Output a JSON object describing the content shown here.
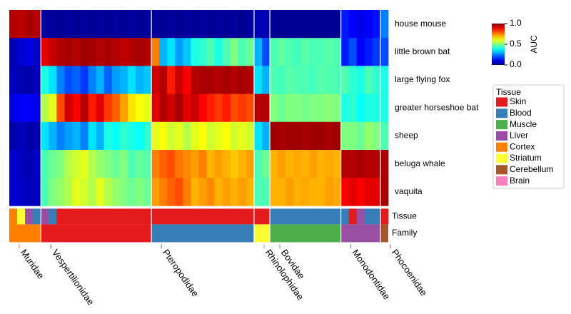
{
  "chart_data": {
    "type": "heatmap",
    "rows": [
      "house mouse",
      "little brown bat",
      "large flying fox",
      "greater horseshoe bat",
      "sheep",
      "beluga whale",
      "vaquita"
    ],
    "annotation_rows": [
      "Tissue",
      "Family"
    ],
    "zlim": [
      0,
      1
    ],
    "colormap": "jet",
    "colorbar": {
      "label": "AUC",
      "ticks": [
        {
          "value": 1,
          "label": "1.0"
        },
        {
          "value": 0.5,
          "label": "0.5"
        },
        {
          "value": 0,
          "label": "0.0"
        }
      ]
    },
    "legend_title": "Tissue",
    "tissues": [
      {
        "name": "Skin",
        "color": "#e41a1c"
      },
      {
        "name": "Blood",
        "color": "#377eb8"
      },
      {
        "name": "Muscle",
        "color": "#4daf4a"
      },
      {
        "name": "Liver",
        "color": "#984ea3"
      },
      {
        "name": "Cortex",
        "color": "#ff7f00"
      },
      {
        "name": "Striatum",
        "color": "#ffff33",
        "label_color": "#000000"
      },
      {
        "name": "Cerebellum",
        "color": "#a65628"
      },
      {
        "name": "Brain",
        "color": "#f781bf"
      }
    ],
    "families": [
      {
        "name": "Muridae",
        "color": "#ff7f00",
        "columns": [
          {
            "tissue": "Cortex",
            "values": [
              0.95,
              0.05,
              0.06,
              0.1,
              0.04,
              0.08,
              0.08
            ]
          },
          {
            "tissue": "Striatum",
            "values": [
              0.94,
              0.08,
              0.05,
              0.12,
              0.06,
              0.06,
              0.07
            ]
          },
          {
            "tissue": "Liver",
            "values": [
              0.96,
              0.1,
              0.04,
              0.12,
              0.04,
              0.05,
              0.06
            ]
          },
          {
            "tissue": "Blood",
            "values": [
              0.95,
              0.07,
              0.06,
              0.1,
              0.05,
              0.07,
              0.06
            ]
          }
        ]
      },
      {
        "name": "Vespertilionidae",
        "color": "#e41a1c",
        "columns": [
          {
            "tissue": "Liver",
            "values": [
              0.03,
              0.9,
              0.4,
              0.55,
              0.35,
              0.45,
              0.45
            ]
          },
          {
            "tissue": "Blood",
            "values": [
              0.03,
              0.93,
              0.35,
              0.6,
              0.3,
              0.48,
              0.5
            ]
          },
          {
            "tissue": "Skin",
            "values": [
              0.02,
              0.95,
              0.25,
              0.8,
              0.25,
              0.5,
              0.52
            ]
          },
          {
            "tissue": "Skin",
            "values": [
              0.03,
              0.96,
              0.2,
              0.92,
              0.28,
              0.55,
              0.55
            ]
          },
          {
            "tissue": "Skin",
            "values": [
              0.02,
              0.95,
              0.22,
              0.88,
              0.3,
              0.58,
              0.6
            ]
          },
          {
            "tissue": "Skin",
            "values": [
              0.03,
              0.97,
              0.18,
              0.95,
              0.25,
              0.6,
              0.58
            ]
          },
          {
            "tissue": "Skin",
            "values": [
              0.02,
              0.96,
              0.25,
              0.85,
              0.35,
              0.55,
              0.55
            ]
          },
          {
            "tissue": "Skin",
            "values": [
              0.03,
              0.95,
              0.3,
              0.9,
              0.3,
              0.52,
              0.6
            ]
          },
          {
            "tissue": "Skin",
            "values": [
              0.02,
              0.96,
              0.22,
              0.82,
              0.4,
              0.5,
              0.55
            ]
          },
          {
            "tissue": "Skin",
            "values": [
              0.03,
              0.95,
              0.28,
              0.78,
              0.38,
              0.48,
              0.52
            ]
          },
          {
            "tissue": "Skin",
            "values": [
              0.02,
              0.94,
              0.3,
              0.72,
              0.42,
              0.5,
              0.5
            ]
          },
          {
            "tissue": "Skin",
            "values": [
              0.03,
              0.95,
              0.35,
              0.65,
              0.4,
              0.45,
              0.48
            ]
          },
          {
            "tissue": "Skin",
            "values": [
              0.02,
              0.96,
              0.3,
              0.62,
              0.38,
              0.47,
              0.5
            ]
          },
          {
            "tissue": "Skin",
            "values": [
              0.03,
              0.95,
              0.32,
              0.6,
              0.42,
              0.46,
              0.48
            ]
          }
        ]
      },
      {
        "name": "Pteropodidae",
        "color": "#377eb8",
        "columns": [
          {
            "tissue": "Skin",
            "values": [
              0.03,
              0.75,
              0.92,
              0.9,
              0.6,
              0.75,
              0.72
            ]
          },
          {
            "tissue": "Skin",
            "values": [
              0.02,
              0.3,
              0.95,
              0.95,
              0.62,
              0.78,
              0.75
            ]
          },
          {
            "tissue": "Skin",
            "values": [
              0.03,
              0.35,
              0.85,
              0.92,
              0.58,
              0.8,
              0.78
            ]
          },
          {
            "tissue": "Skin",
            "values": [
              0.02,
              0.28,
              0.93,
              0.96,
              0.6,
              0.76,
              0.8
            ]
          },
          {
            "tissue": "Skin",
            "values": [
              0.03,
              0.32,
              0.88,
              0.9,
              0.55,
              0.74,
              0.75
            ]
          },
          {
            "tissue": "Skin",
            "values": [
              0.02,
              0.4,
              0.95,
              0.93,
              0.6,
              0.72,
              0.7
            ]
          },
          {
            "tissue": "Skin",
            "values": [
              0.03,
              0.42,
              0.96,
              0.88,
              0.62,
              0.75,
              0.72
            ]
          },
          {
            "tissue": "Skin",
            "values": [
              0.02,
              0.45,
              0.96,
              0.85,
              0.58,
              0.7,
              0.74
            ]
          },
          {
            "tissue": "Skin",
            "values": [
              0.03,
              0.4,
              0.95,
              0.82,
              0.6,
              0.72,
              0.7
            ]
          },
          {
            "tissue": "Skin",
            "values": [
              0.02,
              0.45,
              0.96,
              0.85,
              0.62,
              0.7,
              0.72
            ]
          },
          {
            "tissue": "Skin",
            "values": [
              0.03,
              0.5,
              0.95,
              0.8,
              0.58,
              0.68,
              0.7
            ]
          },
          {
            "tissue": "Skin",
            "values": [
              0.02,
              0.45,
              0.96,
              0.82,
              0.6,
              0.7,
              0.72
            ]
          },
          {
            "tissue": "Skin",
            "values": [
              0.03,
              0.48,
              0.95,
              0.8,
              0.58,
              0.72,
              0.7
            ]
          }
        ]
      },
      {
        "name": "Rhinolophidae",
        "color": "#ffff33",
        "label_color": "#000000",
        "columns": [
          {
            "tissue": "Skin",
            "values": [
              0.05,
              0.3,
              0.35,
              0.95,
              0.35,
              0.45,
              0.45
            ]
          },
          {
            "tissue": "Skin",
            "values": [
              0.05,
              0.2,
              0.3,
              0.95,
              0.3,
              0.48,
              0.45
            ]
          }
        ]
      },
      {
        "name": "Bovidae",
        "color": "#4daf4a",
        "columns": [
          {
            "tissue": "Blood",
            "values": [
              0.02,
              0.45,
              0.45,
              0.5,
              0.97,
              0.7,
              0.7
            ]
          },
          {
            "tissue": "Blood",
            "values": [
              0.02,
              0.47,
              0.44,
              0.48,
              0.96,
              0.72,
              0.7
            ]
          },
          {
            "tissue": "Blood",
            "values": [
              0.02,
              0.45,
              0.46,
              0.5,
              0.97,
              0.7,
              0.72
            ]
          },
          {
            "tissue": "Blood",
            "values": [
              0.02,
              0.44,
              0.45,
              0.5,
              0.97,
              0.71,
              0.7
            ]
          },
          {
            "tissue": "Blood",
            "values": [
              0.02,
              0.46,
              0.45,
              0.49,
              0.96,
              0.7,
              0.71
            ]
          },
          {
            "tissue": "Blood",
            "values": [
              0.02,
              0.45,
              0.44,
              0.5,
              0.97,
              0.72,
              0.7
            ]
          },
          {
            "tissue": "Blood",
            "values": [
              0.02,
              0.45,
              0.46,
              0.5,
              0.97,
              0.7,
              0.7
            ]
          },
          {
            "tissue": "Blood",
            "values": [
              0.02,
              0.46,
              0.45,
              0.51,
              0.96,
              0.71,
              0.72
            ]
          },
          {
            "tissue": "Blood",
            "values": [
              0.02,
              0.45,
              0.45,
              0.5,
              0.97,
              0.7,
              0.71
            ]
          }
        ]
      },
      {
        "name": "Monodontidae",
        "color": "#984ea3",
        "columns": [
          {
            "tissue": "Blood",
            "values": [
              0.15,
              0.15,
              0.45,
              0.4,
              0.5,
              0.95,
              0.88
            ]
          },
          {
            "tissue": "Skin",
            "values": [
              0.12,
              0.2,
              0.42,
              0.42,
              0.5,
              0.95,
              0.9
            ]
          },
          {
            "tissue": "Liver",
            "values": [
              0.1,
              0.12,
              0.4,
              0.38,
              0.48,
              0.96,
              0.88
            ]
          },
          {
            "tissue": "Blood",
            "values": [
              0.12,
              0.15,
              0.45,
              0.4,
              0.52,
              0.95,
              0.9
            ]
          },
          {
            "tissue": "Blood",
            "values": [
              0.14,
              0.18,
              0.42,
              0.4,
              0.5,
              0.95,
              0.9
            ]
          }
        ]
      },
      {
        "name": "Phocoenidae",
        "color": "#a65628",
        "label_color": "#d2691e",
        "columns": [
          {
            "tissue": "Skin",
            "values": [
              0.25,
              0.2,
              0.4,
              0.4,
              0.45,
              0.96,
              0.96
            ]
          }
        ]
      }
    ]
  }
}
